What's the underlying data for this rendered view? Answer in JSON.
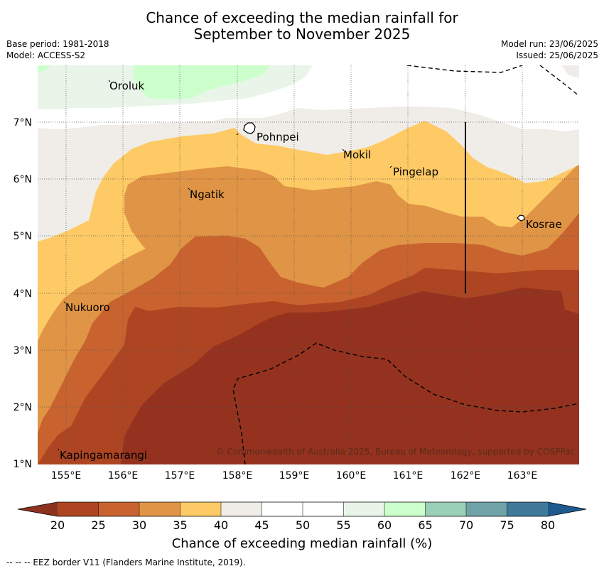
{
  "title_line1": "Chance of exceeding the median rainfall for",
  "title_line2": "September to November 2025",
  "meta_left": [
    "Base period: 1981-2018",
    "Model: ACCESS-S2"
  ],
  "meta_right": [
    "Model run: 23/06/2025",
    "Issued: 25/06/2025"
  ],
  "x_ticks": [
    "155°E",
    "156°E",
    "157°E",
    "158°E",
    "159°E",
    "160°E",
    "161°E",
    "162°E",
    "163°E"
  ],
  "y_ticks": [
    "7°N",
    "6°N",
    "5°N",
    "4°N",
    "3°N",
    "2°N",
    "1°N"
  ],
  "places": [
    {
      "name": "Oroluk",
      "lon": 155.75,
      "lat": 7.6
    },
    {
      "name": "Pohnpei",
      "lon": 158.3,
      "lat": 6.85
    },
    {
      "name": "Mokil",
      "lon": 159.85,
      "lat": 6.4
    },
    {
      "name": "Pingelap",
      "lon": 160.75,
      "lat": 6.15
    },
    {
      "name": "Ngatik",
      "lon": 157.2,
      "lat": 5.75
    },
    {
      "name": "Kosrae",
      "lon": 163.05,
      "lat": 5.3
    },
    {
      "name": "Nukuoro",
      "lon": 155.0,
      "lat": 3.75
    },
    {
      "name": "Kapingamarangi",
      "lon": 154.9,
      "lat": 1.15
    }
  ],
  "copyright": "© Commonwealth of Australia 2025, Bureau of Meteorology, supported by COSPPac",
  "colorbar": {
    "label": "Chance of exceeding median rainfall (%)",
    "ticks": [
      "20",
      "25",
      "30",
      "35",
      "40",
      "45",
      "50",
      "55",
      "60",
      "65",
      "70",
      "75",
      "80"
    ],
    "colors": [
      "#ad4522",
      "#c8632f",
      "#e09445",
      "#fdca65",
      "#f0ede8",
      "#ffffff",
      "#ffffff",
      "#eaf5ea",
      "#ccffcc",
      "#9acfb7",
      "#6fa3a8",
      "#3f7a9b"
    ],
    "under_color": "#8e3220",
    "over_color": "#1e5a8c"
  },
  "footnote": "--  --  -- EEZ border V11 (Flanders Marine Institute, 2019).",
  "colors": {
    "c20": "#94321f",
    "c25": "#ad4522",
    "c30": "#c8632f",
    "c35": "#e09445",
    "c40": "#fdca65",
    "c45": "#f0ede8",
    "c60": "#eaf5ea",
    "c65": "#ccffcc"
  }
}
